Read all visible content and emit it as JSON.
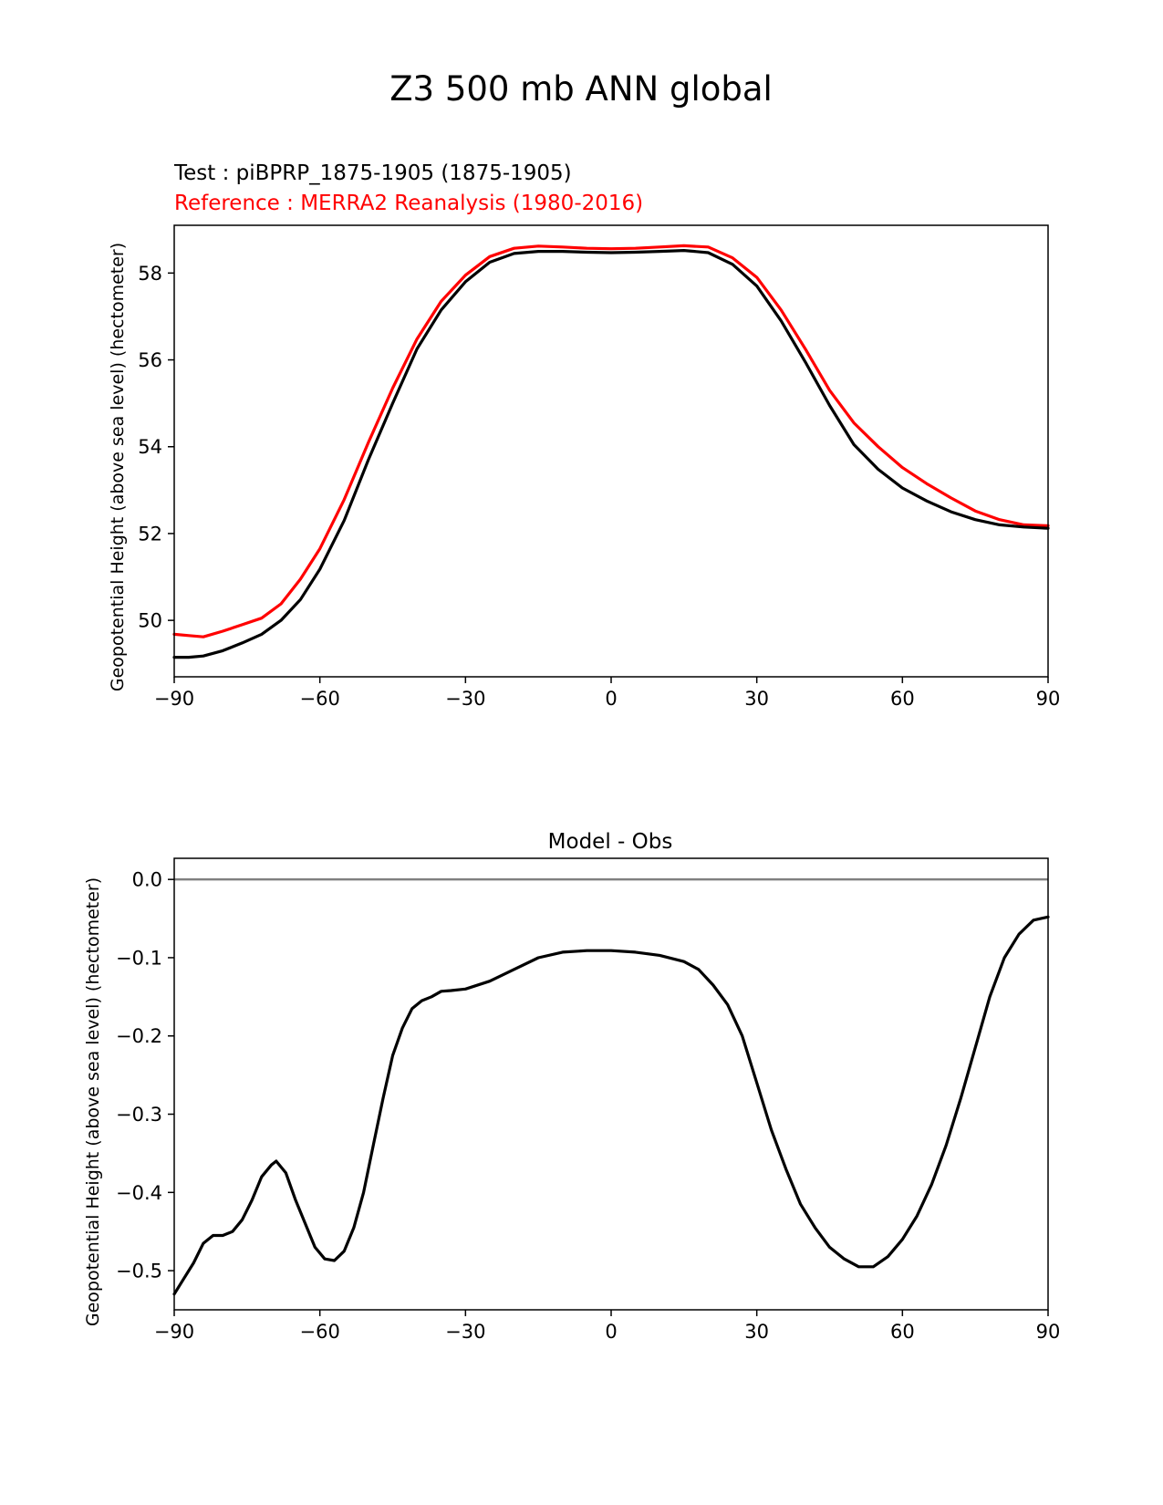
{
  "figure_title": "Z3 500 mb ANN global",
  "chart_data": [
    {
      "type": "line",
      "test_label": "Test : piBPRP_1875-1905 (1875-1905)",
      "reference_label": "Reference : MERRA2 Reanalysis (1980-2016)",
      "xlabel": "",
      "ylabel": "Geopotential Height (above sea level) (hectometer)",
      "xlim": [
        -90,
        90
      ],
      "ylim": [
        48.7,
        59.1
      ],
      "xticks": [
        -90,
        -60,
        -30,
        0,
        30,
        60,
        90
      ],
      "xtick_labels": [
        "−90",
        "−60",
        "−30",
        "0",
        "30",
        "60",
        "90"
      ],
      "yticks": [
        50,
        52,
        54,
        56,
        58
      ],
      "ytick_labels": [
        "50",
        "52",
        "54",
        "56",
        "58"
      ],
      "grid": false,
      "x": [
        -90,
        -87,
        -84,
        -80,
        -76,
        -72,
        -68,
        -64,
        -60,
        -55,
        -50,
        -45,
        -40,
        -35,
        -30,
        -25,
        -20,
        -15,
        -10,
        -5,
        0,
        5,
        10,
        15,
        20,
        25,
        30,
        35,
        40,
        45,
        50,
        55,
        60,
        65,
        70,
        75,
        80,
        85,
        90
      ],
      "series": [
        {
          "name": "Test",
          "color": "#000000",
          "values": [
            49.15,
            49.15,
            49.18,
            49.3,
            49.48,
            49.68,
            50.0,
            50.48,
            51.18,
            52.3,
            53.7,
            55.0,
            56.25,
            57.15,
            57.8,
            58.25,
            58.45,
            58.5,
            58.5,
            58.48,
            58.47,
            58.48,
            58.5,
            58.52,
            58.47,
            58.2,
            57.7,
            56.9,
            55.95,
            54.95,
            54.05,
            53.48,
            53.05,
            52.75,
            52.5,
            52.32,
            52.2,
            52.15,
            52.12
          ]
        },
        {
          "name": "Reference",
          "color": "#ff0000",
          "values": [
            49.68,
            49.65,
            49.62,
            49.75,
            49.9,
            50.05,
            50.38,
            50.95,
            51.65,
            52.78,
            54.1,
            55.35,
            56.48,
            57.35,
            57.95,
            58.38,
            58.57,
            58.62,
            58.6,
            58.57,
            58.56,
            58.57,
            58.6,
            58.63,
            58.6,
            58.35,
            57.9,
            57.15,
            56.25,
            55.3,
            54.55,
            54.0,
            53.52,
            53.15,
            52.82,
            52.52,
            52.32,
            52.2,
            52.18
          ]
        }
      ]
    },
    {
      "type": "line",
      "title": "Model - Obs",
      "xlabel": "",
      "ylabel": "Geopotential Height (above sea level) (hectometer)",
      "xlim": [
        -90,
        90
      ],
      "ylim": [
        -0.55,
        0.027
      ],
      "xticks": [
        -90,
        -60,
        -30,
        0,
        30,
        60,
        90
      ],
      "xtick_labels": [
        "−90",
        "−60",
        "−30",
        "0",
        "30",
        "60",
        "90"
      ],
      "yticks": [
        0.0,
        -0.1,
        -0.2,
        -0.3,
        -0.4,
        -0.5
      ],
      "ytick_labels": [
        "0.0",
        "−0.1",
        "−0.2",
        "−0.3",
        "−0.4",
        "−0.5"
      ],
      "grid": false,
      "zero_line_color": "#808080",
      "x": [
        -90,
        -88,
        -86,
        -84,
        -82,
        -80,
        -78,
        -76,
        -74,
        -72,
        -70,
        -69,
        -67,
        -65,
        -63,
        -61,
        -59,
        -57,
        -55,
        -53,
        -51,
        -49,
        -47,
        -45,
        -43,
        -41,
        -39,
        -37,
        -35,
        -33,
        -30,
        -25,
        -20,
        -15,
        -10,
        -5,
        0,
        5,
        10,
        15,
        18,
        21,
        24,
        27,
        30,
        33,
        36,
        39,
        42,
        45,
        48,
        51,
        54,
        57,
        60,
        63,
        66,
        69,
        72,
        75,
        78,
        81,
        84,
        87,
        90
      ],
      "series": [
        {
          "name": "Model - Obs",
          "color": "#000000",
          "values": [
            -0.53,
            -0.51,
            -0.49,
            -0.465,
            -0.455,
            -0.455,
            -0.45,
            -0.435,
            -0.41,
            -0.38,
            -0.365,
            -0.36,
            -0.375,
            -0.41,
            -0.44,
            -0.47,
            -0.485,
            -0.487,
            -0.475,
            -0.445,
            -0.4,
            -0.34,
            -0.28,
            -0.225,
            -0.19,
            -0.165,
            -0.155,
            -0.15,
            -0.143,
            -0.142,
            -0.14,
            -0.13,
            -0.115,
            -0.1,
            -0.093,
            -0.091,
            -0.091,
            -0.093,
            -0.097,
            -0.105,
            -0.115,
            -0.135,
            -0.16,
            -0.2,
            -0.26,
            -0.32,
            -0.37,
            -0.415,
            -0.445,
            -0.47,
            -0.485,
            -0.495,
            -0.495,
            -0.482,
            -0.46,
            -0.43,
            -0.39,
            -0.34,
            -0.28,
            -0.215,
            -0.15,
            -0.1,
            -0.07,
            -0.052,
            -0.048
          ]
        }
      ]
    }
  ]
}
